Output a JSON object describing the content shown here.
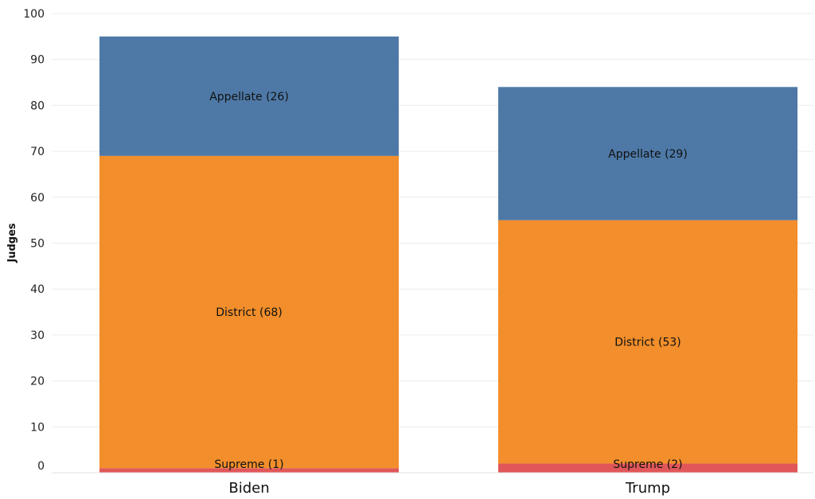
{
  "chart_data": {
    "type": "bar",
    "stacked": true,
    "ylabel": "Judges",
    "xlabel": "",
    "ylim": [
      0,
      100
    ],
    "yticks": [
      0,
      10,
      20,
      30,
      40,
      50,
      60,
      70,
      80,
      90,
      100
    ],
    "grid": true,
    "categories": [
      "Biden",
      "Trump"
    ],
    "series": [
      {
        "name": "Supreme",
        "values": [
          1,
          2
        ],
        "color": "#E15759",
        "labels": [
          "Supreme (1)",
          "Supreme (2)"
        ]
      },
      {
        "name": "District",
        "values": [
          68,
          53
        ],
        "color": "#F28E2B",
        "labels": [
          "District (68)",
          "District (53)"
        ]
      },
      {
        "name": "Appellate",
        "values": [
          26,
          29
        ],
        "color": "#4E79A7",
        "labels": [
          "Appellate (26)",
          "Appellate (29)"
        ]
      }
    ]
  }
}
